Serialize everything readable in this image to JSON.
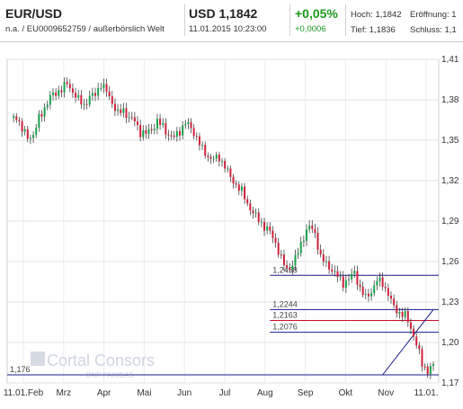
{
  "header": {
    "symbol": "EUR/USD",
    "subtitle": "n.a. / EU0009652759 / außerbörslich Welt",
    "price": "USD 1,1842",
    "datetime": "11.01.2015 10:23:00",
    "change_pct": "+0,05%",
    "change_abs": "+0,0006",
    "high": "Hoch: 1,1842",
    "low": "Tief: 1,1836",
    "open": "Eröffnung: 1",
    "close": "Schluss: 1,1",
    "colors": {
      "positive": "#1c9a1c"
    }
  },
  "watermark": {
    "brand": "Cortal Consors",
    "sub": "BNP PARIBAS"
  },
  "chart_data": {
    "type": "candlestick",
    "title": "",
    "xlabel": "",
    "ylabel": "",
    "ylim": [
      1.17,
      1.41
    ],
    "y_ticks": [
      "1,41",
      "1,38",
      "1,35",
      "1,32",
      "1,29",
      "1,26",
      "1,23",
      "1,20",
      "1,17"
    ],
    "x_ticks": [
      "11.01.Feb",
      "Mrz",
      "Apr",
      "Mai",
      "Jun",
      "Jul",
      "Aug",
      "Sep",
      "Okt",
      "Nov",
      "11.01."
    ],
    "grid": true,
    "colors": {
      "up": "#18a24a",
      "down": "#d0203a",
      "support": "#1a1a8c",
      "resistance": "#c4102a"
    },
    "series_close": [
      [
        0,
        1.365
      ],
      [
        2,
        1.368
      ],
      [
        4,
        1.358
      ],
      [
        6,
        1.352
      ],
      [
        8,
        1.354
      ],
      [
        10,
        1.366
      ],
      [
        12,
        1.374
      ],
      [
        14,
        1.382
      ],
      [
        16,
        1.385
      ],
      [
        18,
        1.388
      ],
      [
        20,
        1.392
      ],
      [
        22,
        1.386
      ],
      [
        24,
        1.38
      ],
      [
        26,
        1.376
      ],
      [
        28,
        1.382
      ],
      [
        30,
        1.384
      ],
      [
        32,
        1.392
      ],
      [
        34,
        1.386
      ],
      [
        36,
        1.378
      ],
      [
        38,
        1.37
      ],
      [
        40,
        1.372
      ],
      [
        42,
        1.367
      ],
      [
        44,
        1.364
      ],
      [
        46,
        1.356
      ],
      [
        48,
        1.355
      ],
      [
        50,
        1.358
      ],
      [
        52,
        1.364
      ],
      [
        54,
        1.36
      ],
      [
        56,
        1.354
      ],
      [
        58,
        1.352
      ],
      [
        60,
        1.357
      ],
      [
        62,
        1.363
      ],
      [
        64,
        1.359
      ],
      [
        66,
        1.352
      ],
      [
        68,
        1.343
      ],
      [
        70,
        1.338
      ],
      [
        72,
        1.336
      ],
      [
        74,
        1.337
      ],
      [
        76,
        1.331
      ],
      [
        78,
        1.322
      ],
      [
        80,
        1.317
      ],
      [
        82,
        1.312
      ],
      [
        84,
        1.303
      ],
      [
        86,
        1.296
      ],
      [
        88,
        1.291
      ],
      [
        90,
        1.286
      ],
      [
        92,
        1.282
      ],
      [
        94,
        1.274
      ],
      [
        96,
        1.262
      ],
      [
        98,
        1.254
      ],
      [
        100,
        1.258
      ],
      [
        102,
        1.267
      ],
      [
        104,
        1.279
      ],
      [
        106,
        1.286
      ],
      [
        108,
        1.281
      ],
      [
        110,
        1.263
      ],
      [
        112,
        1.258
      ],
      [
        114,
        1.254
      ],
      [
        116,
        1.249
      ],
      [
        118,
        1.244
      ],
      [
        120,
        1.247
      ],
      [
        122,
        1.252
      ],
      [
        124,
        1.24
      ],
      [
        126,
        1.233
      ],
      [
        128,
        1.238
      ],
      [
        130,
        1.246
      ],
      [
        132,
        1.244
      ],
      [
        134,
        1.236
      ],
      [
        136,
        1.226
      ],
      [
        138,
        1.222
      ],
      [
        140,
        1.22
      ],
      [
        142,
        1.211
      ],
      [
        144,
        1.199
      ],
      [
        146,
        1.184
      ],
      [
        148,
        1.179
      ],
      [
        150,
        1.184
      ]
    ],
    "levels": [
      {
        "label": "1,2498",
        "value": 1.2498,
        "kind": "support"
      },
      {
        "label": "1,2244",
        "value": 1.2244,
        "kind": "support"
      },
      {
        "label": "1,2163",
        "value": 1.2163,
        "kind": "resistance"
      },
      {
        "label": "1,2076",
        "value": 1.2076,
        "kind": "support"
      },
      {
        "label": "1,176",
        "value": 1.176,
        "kind": "support"
      }
    ],
    "trendline": {
      "from": [
        132,
        1.176
      ],
      "to": [
        150,
        1.2244
      ]
    }
  }
}
